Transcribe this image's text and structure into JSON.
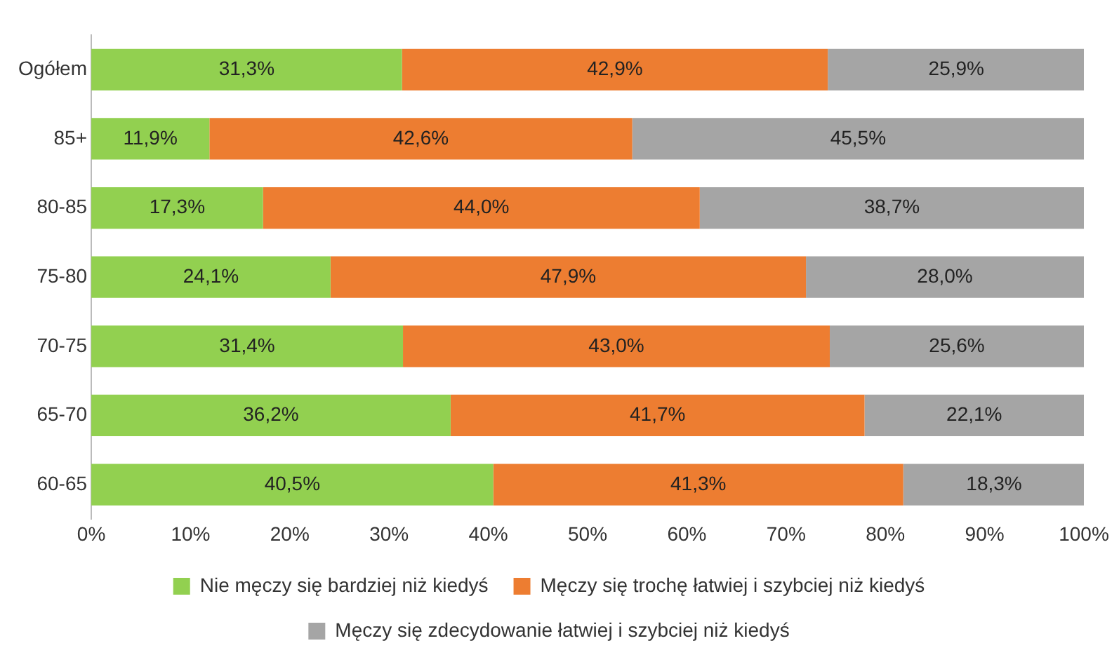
{
  "chart_data": {
    "type": "bar",
    "orientation": "horizontal",
    "stacked": true,
    "categories": [
      "Ogółem",
      "85+",
      "80-85",
      "75-80",
      "70-75",
      "65-70",
      "60-65"
    ],
    "series": [
      {
        "name": "Nie męczy się bardziej niż kiedyś",
        "color": "#92d050",
        "values": [
          31.3,
          11.9,
          17.3,
          24.1,
          31.4,
          36.2,
          40.5
        ],
        "value_labels": [
          "31,3%",
          "11,9%",
          "17,3%",
          "24,1%",
          "31,4%",
          "36,2%",
          "40,5%"
        ]
      },
      {
        "name": "Męczy się trochę łatwiej i szybciej niż kiedyś",
        "color": "#ed7d31",
        "values": [
          42.9,
          42.6,
          44.0,
          47.9,
          43.0,
          41.7,
          41.3
        ],
        "value_labels": [
          "42,9%",
          "42,6%",
          "44,0%",
          "47,9%",
          "43,0%",
          "41,7%",
          "41,3%"
        ]
      },
      {
        "name": "Męczy się zdecydowanie łatwiej i szybciej niż kiedyś",
        "color": "#a5a5a5",
        "values": [
          25.9,
          45.5,
          38.7,
          28.0,
          25.6,
          22.1,
          18.3
        ],
        "value_labels": [
          "25,9%",
          "45,5%",
          "38,7%",
          "28,0%",
          "25,6%",
          "22,1%",
          "18,3%"
        ]
      }
    ],
    "xlim": [
      0,
      100
    ],
    "xticks": [
      {
        "value": 0,
        "label": "0%"
      },
      {
        "value": 10,
        "label": "10%"
      },
      {
        "value": 20,
        "label": "20%"
      },
      {
        "value": 30,
        "label": "30%"
      },
      {
        "value": 40,
        "label": "40%"
      },
      {
        "value": 50,
        "label": "50%"
      },
      {
        "value": 60,
        "label": "60%"
      },
      {
        "value": 70,
        "label": "70%"
      },
      {
        "value": 80,
        "label": "80%"
      },
      {
        "value": 90,
        "label": "90%"
      },
      {
        "value": 100,
        "label": "100%"
      }
    ],
    "grid": false,
    "legend": "bottom"
  }
}
